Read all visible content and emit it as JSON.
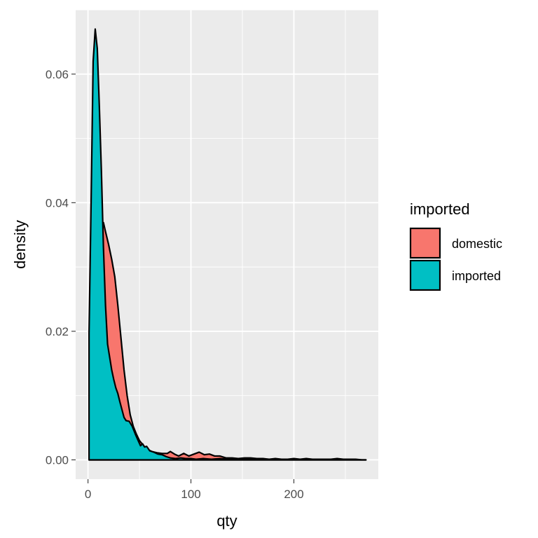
{
  "chart_data": {
    "type": "area",
    "subtype": "density",
    "title": "",
    "xlabel": "qty",
    "ylabel": "density",
    "xlim": [
      -12,
      282
    ],
    "ylim": [
      -0.003,
      0.07
    ],
    "x_ticks": [
      {
        "value": 0,
        "label": "0"
      },
      {
        "value": 100,
        "label": "100"
      },
      {
        "value": 200,
        "label": "200"
      }
    ],
    "y_ticks": [
      {
        "value": 0.0,
        "label": "0.00"
      },
      {
        "value": 0.02,
        "label": "0.02"
      },
      {
        "value": 0.04,
        "label": "0.04"
      },
      {
        "value": 0.06,
        "label": "0.06"
      }
    ],
    "grid": true,
    "legend": {
      "title": "imported",
      "position": "right"
    },
    "series": [
      {
        "name": "domestic",
        "color": "#F8766D",
        "points": [
          [
            1,
            0.0086
          ],
          [
            4,
            0.022
          ],
          [
            7,
            0.03
          ],
          [
            10,
            0.035
          ],
          [
            13,
            0.0366
          ],
          [
            15,
            0.0369
          ],
          [
            17,
            0.0355
          ],
          [
            20,
            0.0335
          ],
          [
            23,
            0.0312
          ],
          [
            26,
            0.0285
          ],
          [
            29,
            0.024
          ],
          [
            32,
            0.019
          ],
          [
            35,
            0.014
          ],
          [
            38,
            0.01
          ],
          [
            41,
            0.007
          ],
          [
            44,
            0.0052
          ],
          [
            47,
            0.004
          ],
          [
            50,
            0.003
          ],
          [
            54,
            0.0022
          ],
          [
            58,
            0.0016
          ],
          [
            62,
            0.0013
          ],
          [
            67,
            0.0011
          ],
          [
            72,
            0.001
          ],
          [
            77,
            0.001
          ],
          [
            80,
            0.0013
          ],
          [
            84,
            0.0009
          ],
          [
            88,
            0.0006
          ],
          [
            93,
            0.001
          ],
          [
            98,
            0.0006
          ],
          [
            103,
            0.0009
          ],
          [
            108,
            0.0012
          ],
          [
            113,
            0.0008
          ],
          [
            118,
            0.0009
          ],
          [
            123,
            0.0006
          ],
          [
            128,
            0.0006
          ],
          [
            134,
            0.0003
          ],
          [
            140,
            0.0003
          ],
          [
            146,
            0.0002
          ],
          [
            152,
            0.0003
          ],
          [
            158,
            0.0003
          ],
          [
            164,
            0.0002
          ],
          [
            170,
            0.0002
          ],
          [
            176,
            0.0001
          ],
          [
            182,
            0.0002
          ],
          [
            188,
            0.0001
          ],
          [
            194,
            0.0001
          ],
          [
            200,
            0.0002
          ],
          [
            206,
            0.0001
          ],
          [
            212,
            0.0002
          ],
          [
            218,
            0.0001
          ],
          [
            224,
            0.0001
          ],
          [
            230,
            0.0001
          ],
          [
            236,
            0.0001
          ],
          [
            242,
            0.0002
          ],
          [
            248,
            0.0001
          ],
          [
            254,
            0.0001
          ],
          [
            260,
            0.0001
          ],
          [
            266,
            0.0
          ],
          [
            270,
            0.0
          ]
        ]
      },
      {
        "name": "imported",
        "color": "#00BFC4",
        "points": [
          [
            1,
            0.0197
          ],
          [
            3,
            0.04
          ],
          [
            5,
            0.062
          ],
          [
            7,
            0.067
          ],
          [
            9,
            0.064
          ],
          [
            11,
            0.055
          ],
          [
            13,
            0.045
          ],
          [
            15,
            0.033
          ],
          [
            17,
            0.024
          ],
          [
            19,
            0.018
          ],
          [
            21,
            0.016
          ],
          [
            23,
            0.014
          ],
          [
            25,
            0.0125
          ],
          [
            27,
            0.0112
          ],
          [
            29,
            0.0103
          ],
          [
            31,
            0.009
          ],
          [
            33,
            0.0078
          ],
          [
            35,
            0.0066
          ],
          [
            37,
            0.0061
          ],
          [
            40,
            0.006
          ],
          [
            43,
            0.0052
          ],
          [
            46,
            0.004
          ],
          [
            49,
            0.0029
          ],
          [
            51,
            0.0022
          ],
          [
            53,
            0.0025
          ],
          [
            55,
            0.002
          ],
          [
            57,
            0.0021
          ],
          [
            60,
            0.0014
          ],
          [
            64,
            0.0012
          ],
          [
            68,
            0.0009
          ],
          [
            72,
            0.0008
          ],
          [
            76,
            0.0005
          ],
          [
            80,
            0.0003
          ],
          [
            85,
            0.0002
          ],
          [
            90,
            0.0003
          ],
          [
            95,
            0.0002
          ],
          [
            100,
            0.0002
          ],
          [
            105,
            0.0001
          ],
          [
            112,
            0.0002
          ],
          [
            120,
            0.0001
          ],
          [
            128,
            0.0002
          ],
          [
            136,
            0.0001
          ],
          [
            144,
            0.0001
          ],
          [
            152,
            0.0002
          ],
          [
            160,
            0.0001
          ],
          [
            170,
            0.0001
          ],
          [
            180,
            0.0001
          ],
          [
            190,
            0.0001
          ],
          [
            200,
            0.0001
          ],
          [
            210,
            0.0001
          ],
          [
            220,
            0.0001
          ],
          [
            230,
            0.0
          ],
          [
            240,
            0.0001
          ],
          [
            250,
            0.0
          ],
          [
            260,
            0.0
          ],
          [
            270,
            0.0
          ]
        ]
      }
    ]
  }
}
